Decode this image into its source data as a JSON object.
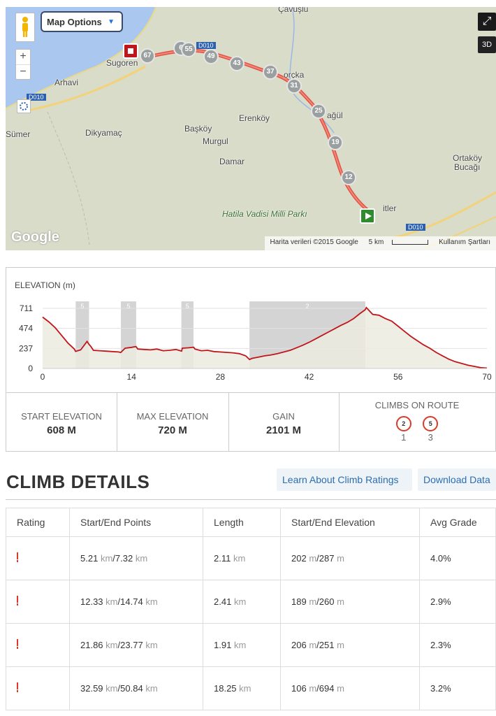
{
  "map": {
    "options_label": "Map Options",
    "labels": {
      "cavusu": "Çavuşlu",
      "sugoren": "Sugoren",
      "arhavi": "Arhavi",
      "road_d010": "D010",
      "sumer": "Sümer",
      "dikyamac": "Dikyamaç",
      "erenkoy": "Erenköy",
      "baskoy": "Başköy",
      "murgul": "Murgul",
      "damar": "Damar",
      "orcka": "orçka",
      "agul": "ağül",
      "ortakoy": "Ortaköy",
      "bucagi": "Bucağı",
      "hatila": "Hatila Vadisi Milli Parkı",
      "itler": "itler",
      "road_d010b": "D010",
      "road_d010c": "D010"
    },
    "km_markers": [
      "67",
      "6",
      "55",
      "49",
      "43",
      "37",
      "31",
      "25",
      "19",
      "12"
    ],
    "btn_3d": "3D",
    "zoom_in": "+",
    "zoom_out": "−",
    "google": "Google",
    "attribution": "Harita verileri ©2015 Google",
    "scale": "5 km",
    "terms": "Kullanım Şartları"
  },
  "elevation": {
    "title": "ELEVATION (m)",
    "stats": {
      "start_label": "START ELEVATION",
      "start_value": "608 M",
      "max_label": "MAX ELEVATION",
      "max_value": "720 M",
      "gain_label": "GAIN",
      "gain_value": "2101 M",
      "climbs_label": "CLIMBS ON ROUTE",
      "climb_cats": [
        {
          "cat": "2",
          "count": "1"
        },
        {
          "cat": "5",
          "count": "3"
        }
      ]
    }
  },
  "chart_data": {
    "type": "area",
    "ylabel": "ELEVATION (m)",
    "x_ticks": [
      0,
      14,
      28,
      42,
      56,
      70
    ],
    "y_ticks": [
      0,
      237,
      474,
      711
    ],
    "xlim": [
      0,
      70
    ],
    "ylim": [
      0,
      711
    ],
    "grid": true,
    "x": [
      0,
      1,
      2,
      3,
      4,
      5,
      5.2,
      6,
      7,
      7.3,
      7.6,
      8,
      9,
      10,
      11,
      12,
      12.3,
      13,
      14,
      14.7,
      15,
      16,
      17,
      18,
      19,
      20,
      21,
      21.9,
      22,
      23,
      23.8,
      24,
      25,
      26,
      27,
      28,
      29,
      30,
      31,
      32,
      32.6,
      33,
      34,
      35,
      36,
      37,
      38,
      39,
      40,
      41,
      42,
      43,
      44,
      45,
      46,
      47,
      48,
      49,
      50,
      50.8,
      51,
      52,
      53,
      54,
      55,
      56,
      57,
      58,
      59,
      60,
      61,
      62,
      63,
      64,
      65,
      66,
      67,
      68,
      69,
      70
    ],
    "y": [
      608,
      550,
      480,
      390,
      300,
      230,
      202,
      220,
      320,
      287,
      260,
      215,
      210,
      205,
      200,
      195,
      189,
      240,
      250,
      260,
      230,
      225,
      220,
      230,
      210,
      215,
      225,
      206,
      240,
      245,
      251,
      230,
      210,
      215,
      200,
      195,
      190,
      185,
      175,
      150,
      106,
      120,
      135,
      150,
      160,
      175,
      195,
      215,
      245,
      275,
      310,
      350,
      390,
      430,
      470,
      510,
      545,
      590,
      650,
      694,
      720,
      640,
      630,
      590,
      560,
      500,
      440,
      380,
      330,
      280,
      240,
      190,
      150,
      110,
      80,
      60,
      40,
      25,
      10,
      5
    ],
    "climbs": [
      {
        "start": 5.21,
        "end": 7.32,
        "cat": "5"
      },
      {
        "start": 12.33,
        "end": 14.74,
        "cat": "5"
      },
      {
        "start": 21.86,
        "end": 23.77,
        "cat": "5"
      },
      {
        "start": 32.59,
        "end": 50.84,
        "cat": "2"
      }
    ],
    "line_color": "#c0161b",
    "fill_color": "#ecebdf"
  },
  "climb_details": {
    "title": "CLIMB DETAILS",
    "learn_btn": "Learn About Climb Ratings",
    "download_btn": "Download Data",
    "columns": [
      "Rating",
      "Start/End Points",
      "Length",
      "Start/End Elevation",
      "Avg Grade"
    ],
    "units": {
      "km": "km",
      "m": "m"
    },
    "rows": [
      {
        "start_km": "5.21",
        "end_km": "7.32",
        "length": "2.11",
        "start_elev": "202",
        "end_elev": "287",
        "grade": "4.0%"
      },
      {
        "start_km": "12.33",
        "end_km": "14.74",
        "length": "2.41",
        "start_elev": "189",
        "end_elev": "260",
        "grade": "2.9%"
      },
      {
        "start_km": "21.86",
        "end_km": "23.77",
        "length": "1.91",
        "start_elev": "206",
        "end_elev": "251",
        "grade": "2.3%"
      },
      {
        "start_km": "32.59",
        "end_km": "50.84",
        "length": "18.25",
        "start_elev": "106",
        "end_elev": "694",
        "grade": "3.2%"
      }
    ]
  }
}
